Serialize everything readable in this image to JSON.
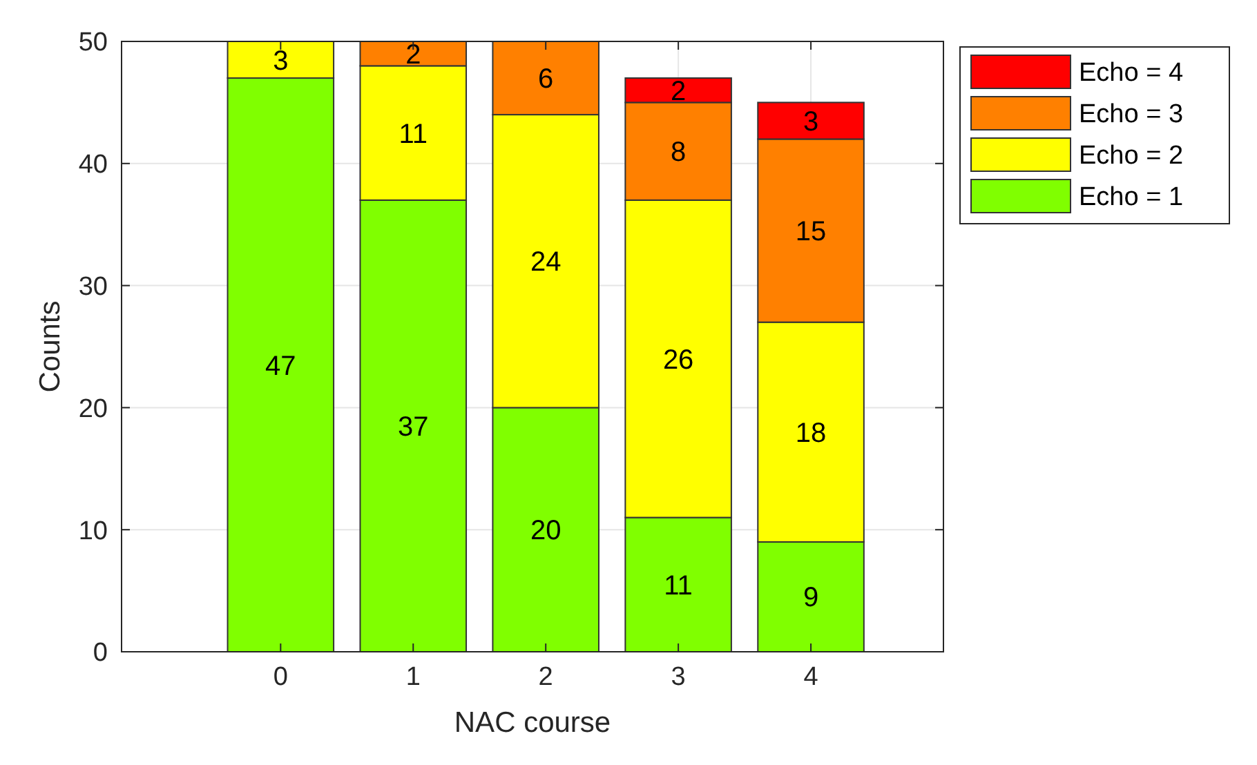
{
  "chart_data": {
    "type": "bar",
    "xlabel": "NAC course",
    "ylabel": "Counts",
    "categories": [
      "0",
      "1",
      "2",
      "3",
      "4"
    ],
    "stacked": true,
    "data_labels": true,
    "grid": true,
    "legend": "top right",
    "ylim": [
      0,
      50
    ],
    "yticks": [
      0,
      10,
      20,
      30,
      40,
      50
    ],
    "series": [
      {
        "name": "Echo = 1",
        "color": "#80ff00",
        "values": [
          47,
          37,
          20,
          11,
          9
        ]
      },
      {
        "name": "Echo = 2",
        "color": "#ffff00",
        "values": [
          3,
          11,
          24,
          26,
          18
        ]
      },
      {
        "name": "Echo = 3",
        "color": "#ff8000",
        "values": [
          null,
          2,
          6,
          8,
          15
        ]
      },
      {
        "name": "Echo = 4",
        "color": "#ff0000",
        "values": [
          null,
          null,
          null,
          2,
          3
        ]
      }
    ]
  }
}
